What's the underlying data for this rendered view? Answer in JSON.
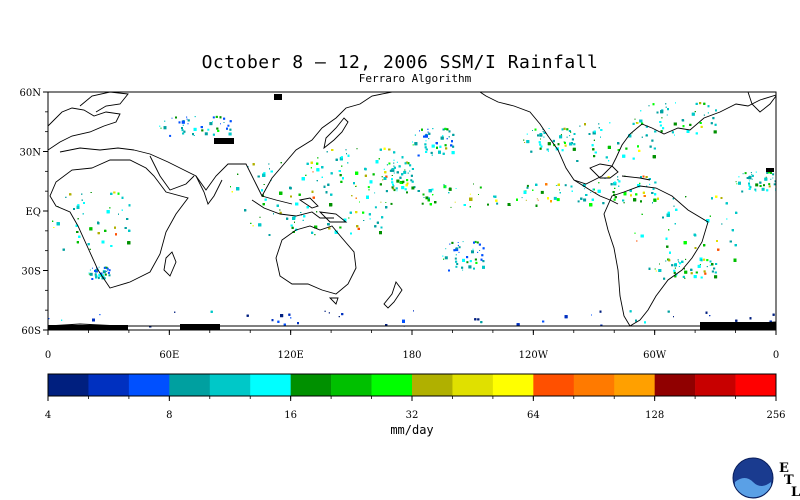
{
  "title": "October 8 – 12, 2006 SSM/I Rainfall",
  "subtitle": "Ferraro Algorithm",
  "map": {
    "lat_ticks": [
      {
        "label": "60N",
        "lat": 60
      },
      {
        "label": "30N",
        "lat": 30
      },
      {
        "label": "EQ",
        "lat": 0
      },
      {
        "label": "30S",
        "lat": -30
      },
      {
        "label": "60S",
        "lat": -60
      }
    ],
    "lon_ticks": [
      {
        "label": "0",
        "lon": 0
      },
      {
        "label": "60E",
        "lon": 60
      },
      {
        "label": "120E",
        "lon": 120
      },
      {
        "label": "180",
        "lon": 180
      },
      {
        "label": "120W",
        "lon": 240
      },
      {
        "label": "60W",
        "lon": 300
      },
      {
        "label": "0",
        "lon": 360
      }
    ],
    "lon_range": [
      0,
      360
    ],
    "lat_range": [
      -60,
      60
    ]
  },
  "colorbar": {
    "colors": [
      "#001f7f",
      "#0030c0",
      "#0050ff",
      "#00a0a0",
      "#00c8c8",
      "#00ffff",
      "#009000",
      "#00c000",
      "#00ff00",
      "#b0b000",
      "#e0e000",
      "#ffff00",
      "#ff5000",
      "#ff7a00",
      "#ffa000",
      "#900000",
      "#c80000",
      "#ff0000"
    ],
    "tick_labels": [
      "4",
      "8",
      "16",
      "32",
      "64",
      "128",
      "256"
    ],
    "units": "mm/day"
  },
  "logo": {
    "icon": "noaa-logo",
    "letters": [
      "E",
      "T",
      "L"
    ]
  }
}
